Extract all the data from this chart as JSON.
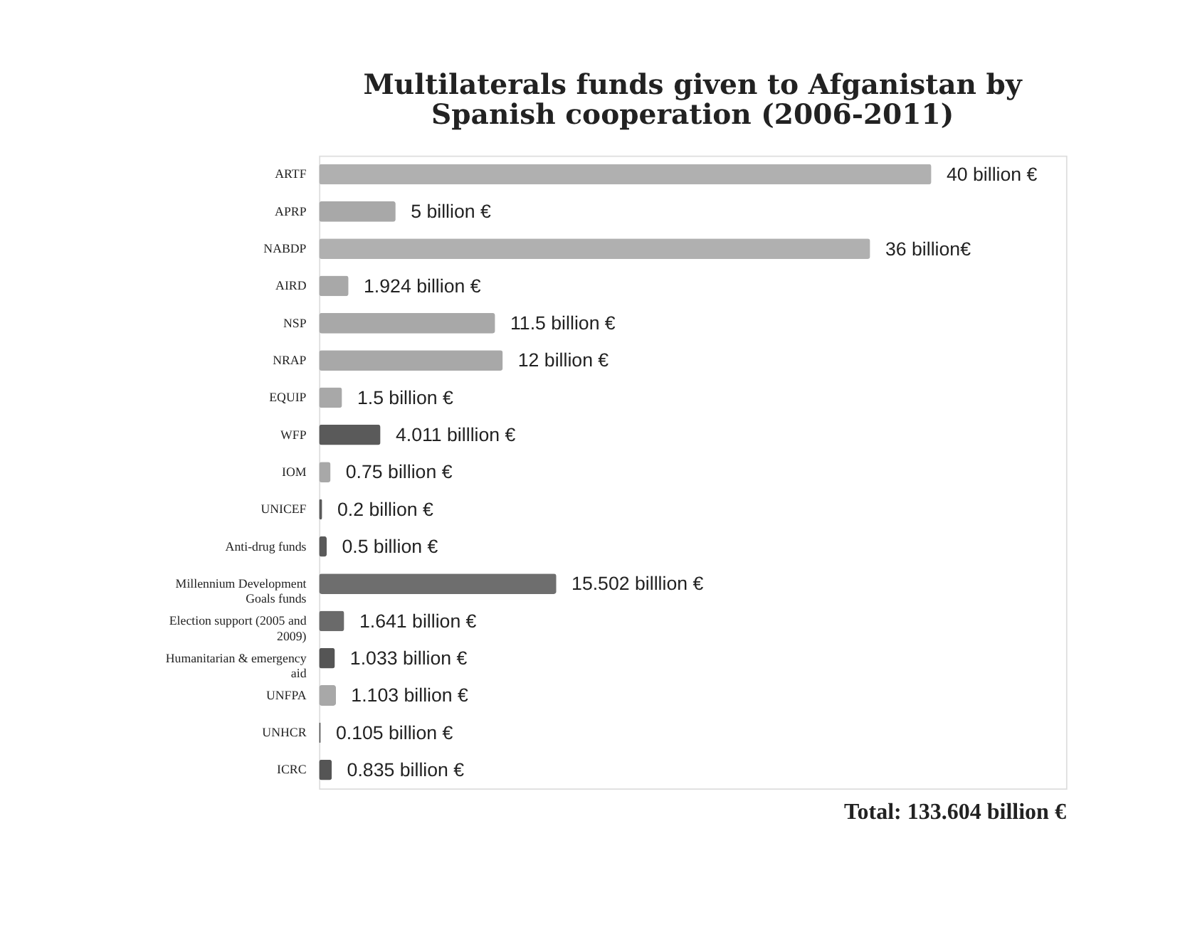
{
  "chart_data": {
    "type": "bar",
    "orientation": "horizontal",
    "title": "Multilaterals funds given to Afganistan by Spanish cooperation (2006-2011)",
    "categories": [
      "ARTF",
      "APRP",
      "NABDP",
      "AIRD",
      "NSP",
      "NRAP",
      "EQUIP",
      "WFP",
      "IOM",
      "UNICEF",
      "Anti-drug funds",
      "Millennium Development Goals funds",
      "Election support (2005 and 2009)",
      "Humanitarian & emergency aid",
      "UNFPA",
      "UNHCR",
      "ICRC"
    ],
    "values": [
      40,
      5,
      36,
      1.924,
      11.5,
      12,
      1.5,
      4.011,
      0.75,
      0.2,
      0.5,
      15.502,
      1.641,
      1.033,
      1.103,
      0.105,
      0.835
    ],
    "colors": [
      "#b0b0b0",
      "#a8a8a8",
      "#b0b0b0",
      "#a8a8a8",
      "#a8a8a8",
      "#a8a8a8",
      "#a8a8a8",
      "#5a5a5a",
      "#a8a8a8",
      "#5a5a5a",
      "#5a5a5a",
      "#6e6e6e",
      "#6a6a6a",
      "#555555",
      "#a8a8a8",
      "#555555",
      "#555555"
    ],
    "value_labels": [
      "40 billion €",
      "5 billion €",
      "36 billion€",
      "1.924 billion €",
      "11.5 billion €",
      "12 billion €",
      "1.5 billion €",
      "4.011 billlion €",
      "0.75 billion €",
      "0.2 billion €",
      "0.5 billion €",
      "15.502 billlion €",
      "1.641 billion €",
      "1.033 billion €",
      "1.103 billion €",
      "0.105 billion €",
      "0.835 billion €"
    ],
    "annotations": [
      "Total: 133.604 billion €"
    ]
  }
}
